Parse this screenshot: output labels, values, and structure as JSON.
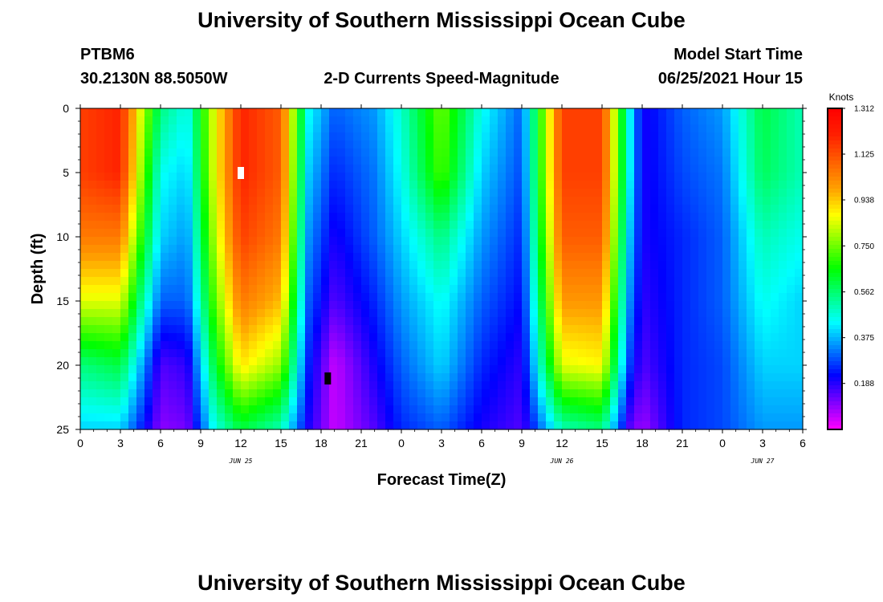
{
  "header": {
    "top_title": "University of Southern Mississippi Ocean Cube",
    "station": "PTBM6",
    "coords": "30.2130N  88.5050W",
    "product": "2-D Currents Speed-Magnitude",
    "model_label": "Model Start Time",
    "model_time": "06/25/2021 Hour 15",
    "bottom_title": "University of Southern Mississippi Ocean Cube"
  },
  "chart_data": {
    "type": "heatmap",
    "xlabel": "Forecast Time(Z)",
    "ylabel": "Depth (ft)",
    "x_range_hours": [
      0,
      54
    ],
    "y_range_ft": [
      0,
      25
    ],
    "x_tick_labels": [
      "0",
      "3",
      "6",
      "9",
      "12",
      "15",
      "18",
      "21",
      "0",
      "3",
      "6",
      "9",
      "12",
      "15",
      "18",
      "21",
      "0",
      "3",
      "6"
    ],
    "y_tick_labels": [
      "0",
      "5",
      "10",
      "15",
      "20",
      "25"
    ],
    "date_labels": [
      {
        "text": "JUN 25",
        "hour": 12
      },
      {
        "text": "JUN 26",
        "hour": 36
      },
      {
        "text": "JUN 27",
        "hour": 51
      }
    ],
    "colorbar": {
      "units": "Knots",
      "min": 0.0,
      "max": 1.312,
      "ticks": [
        "1.312",
        "1.125",
        "0.938",
        "0.750",
        "0.562",
        "0.375",
        "0.188"
      ],
      "colors": [
        "#ff00ff",
        "#8000ff",
        "#0000ff",
        "#0080ff",
        "#00ffff",
        "#00ff80",
        "#00ff00",
        "#80ff00",
        "#ffff00",
        "#ffa000",
        "#ff6000",
        "#ff2000",
        "#ff0000"
      ]
    },
    "time_hours": [
      0,
      3,
      4.5,
      6,
      8,
      10,
      12,
      15,
      17,
      19,
      22,
      24,
      27,
      30,
      33,
      36,
      39,
      41,
      42,
      45,
      48,
      51,
      54
    ],
    "profile_depths_ft": [
      0,
      5,
      10,
      15,
      20,
      25
    ],
    "speed_profiles_knots": [
      [
        1.15,
        1.15,
        1.05,
        0.85,
        0.55,
        0.4
      ],
      [
        1.2,
        1.2,
        1.05,
        0.85,
        0.6,
        0.4
      ],
      [
        0.85,
        0.8,
        0.7,
        0.55,
        0.38,
        0.25
      ],
      [
        0.55,
        0.45,
        0.4,
        0.3,
        0.15,
        0.1
      ],
      [
        0.45,
        0.4,
        0.35,
        0.3,
        0.18,
        0.12
      ],
      [
        0.85,
        0.85,
        0.8,
        0.72,
        0.6,
        0.45
      ],
      [
        1.2,
        1.2,
        1.15,
        1.05,
        0.9,
        0.6
      ],
      [
        1.1,
        1.1,
        1.05,
        0.95,
        0.78,
        0.5
      ],
      [
        0.45,
        0.4,
        0.35,
        0.3,
        0.25,
        0.2
      ],
      [
        0.3,
        0.25,
        0.2,
        0.15,
        0.05,
        0.05
      ],
      [
        0.35,
        0.32,
        0.3,
        0.25,
        0.2,
        0.15
      ],
      [
        0.48,
        0.45,
        0.4,
        0.35,
        0.3,
        0.25
      ],
      [
        0.75,
        0.72,
        0.55,
        0.45,
        0.4,
        0.3
      ],
      [
        0.45,
        0.4,
        0.35,
        0.3,
        0.25,
        0.2
      ],
      [
        0.3,
        0.28,
        0.25,
        0.22,
        0.18,
        0.15
      ],
      [
        1.15,
        1.15,
        1.1,
        1.0,
        0.85,
        0.5
      ],
      [
        1.15,
        1.15,
        1.1,
        1.0,
        0.88,
        0.55
      ],
      [
        0.45,
        0.45,
        0.4,
        0.35,
        0.28,
        0.15
      ],
      [
        0.2,
        0.2,
        0.2,
        0.18,
        0.15,
        0.08
      ],
      [
        0.3,
        0.28,
        0.25,
        0.25,
        0.25,
        0.25
      ],
      [
        0.35,
        0.32,
        0.3,
        0.3,
        0.28,
        0.28
      ],
      [
        0.6,
        0.58,
        0.5,
        0.45,
        0.4,
        0.35
      ],
      [
        0.5,
        0.5,
        0.45,
        0.4,
        0.4,
        0.35
      ]
    ],
    "markers": [
      {
        "hour": 12,
        "depth_ft": 5,
        "color": "#ffffff"
      },
      {
        "hour": 18.5,
        "depth_ft": 21,
        "color": "#000000"
      }
    ]
  }
}
